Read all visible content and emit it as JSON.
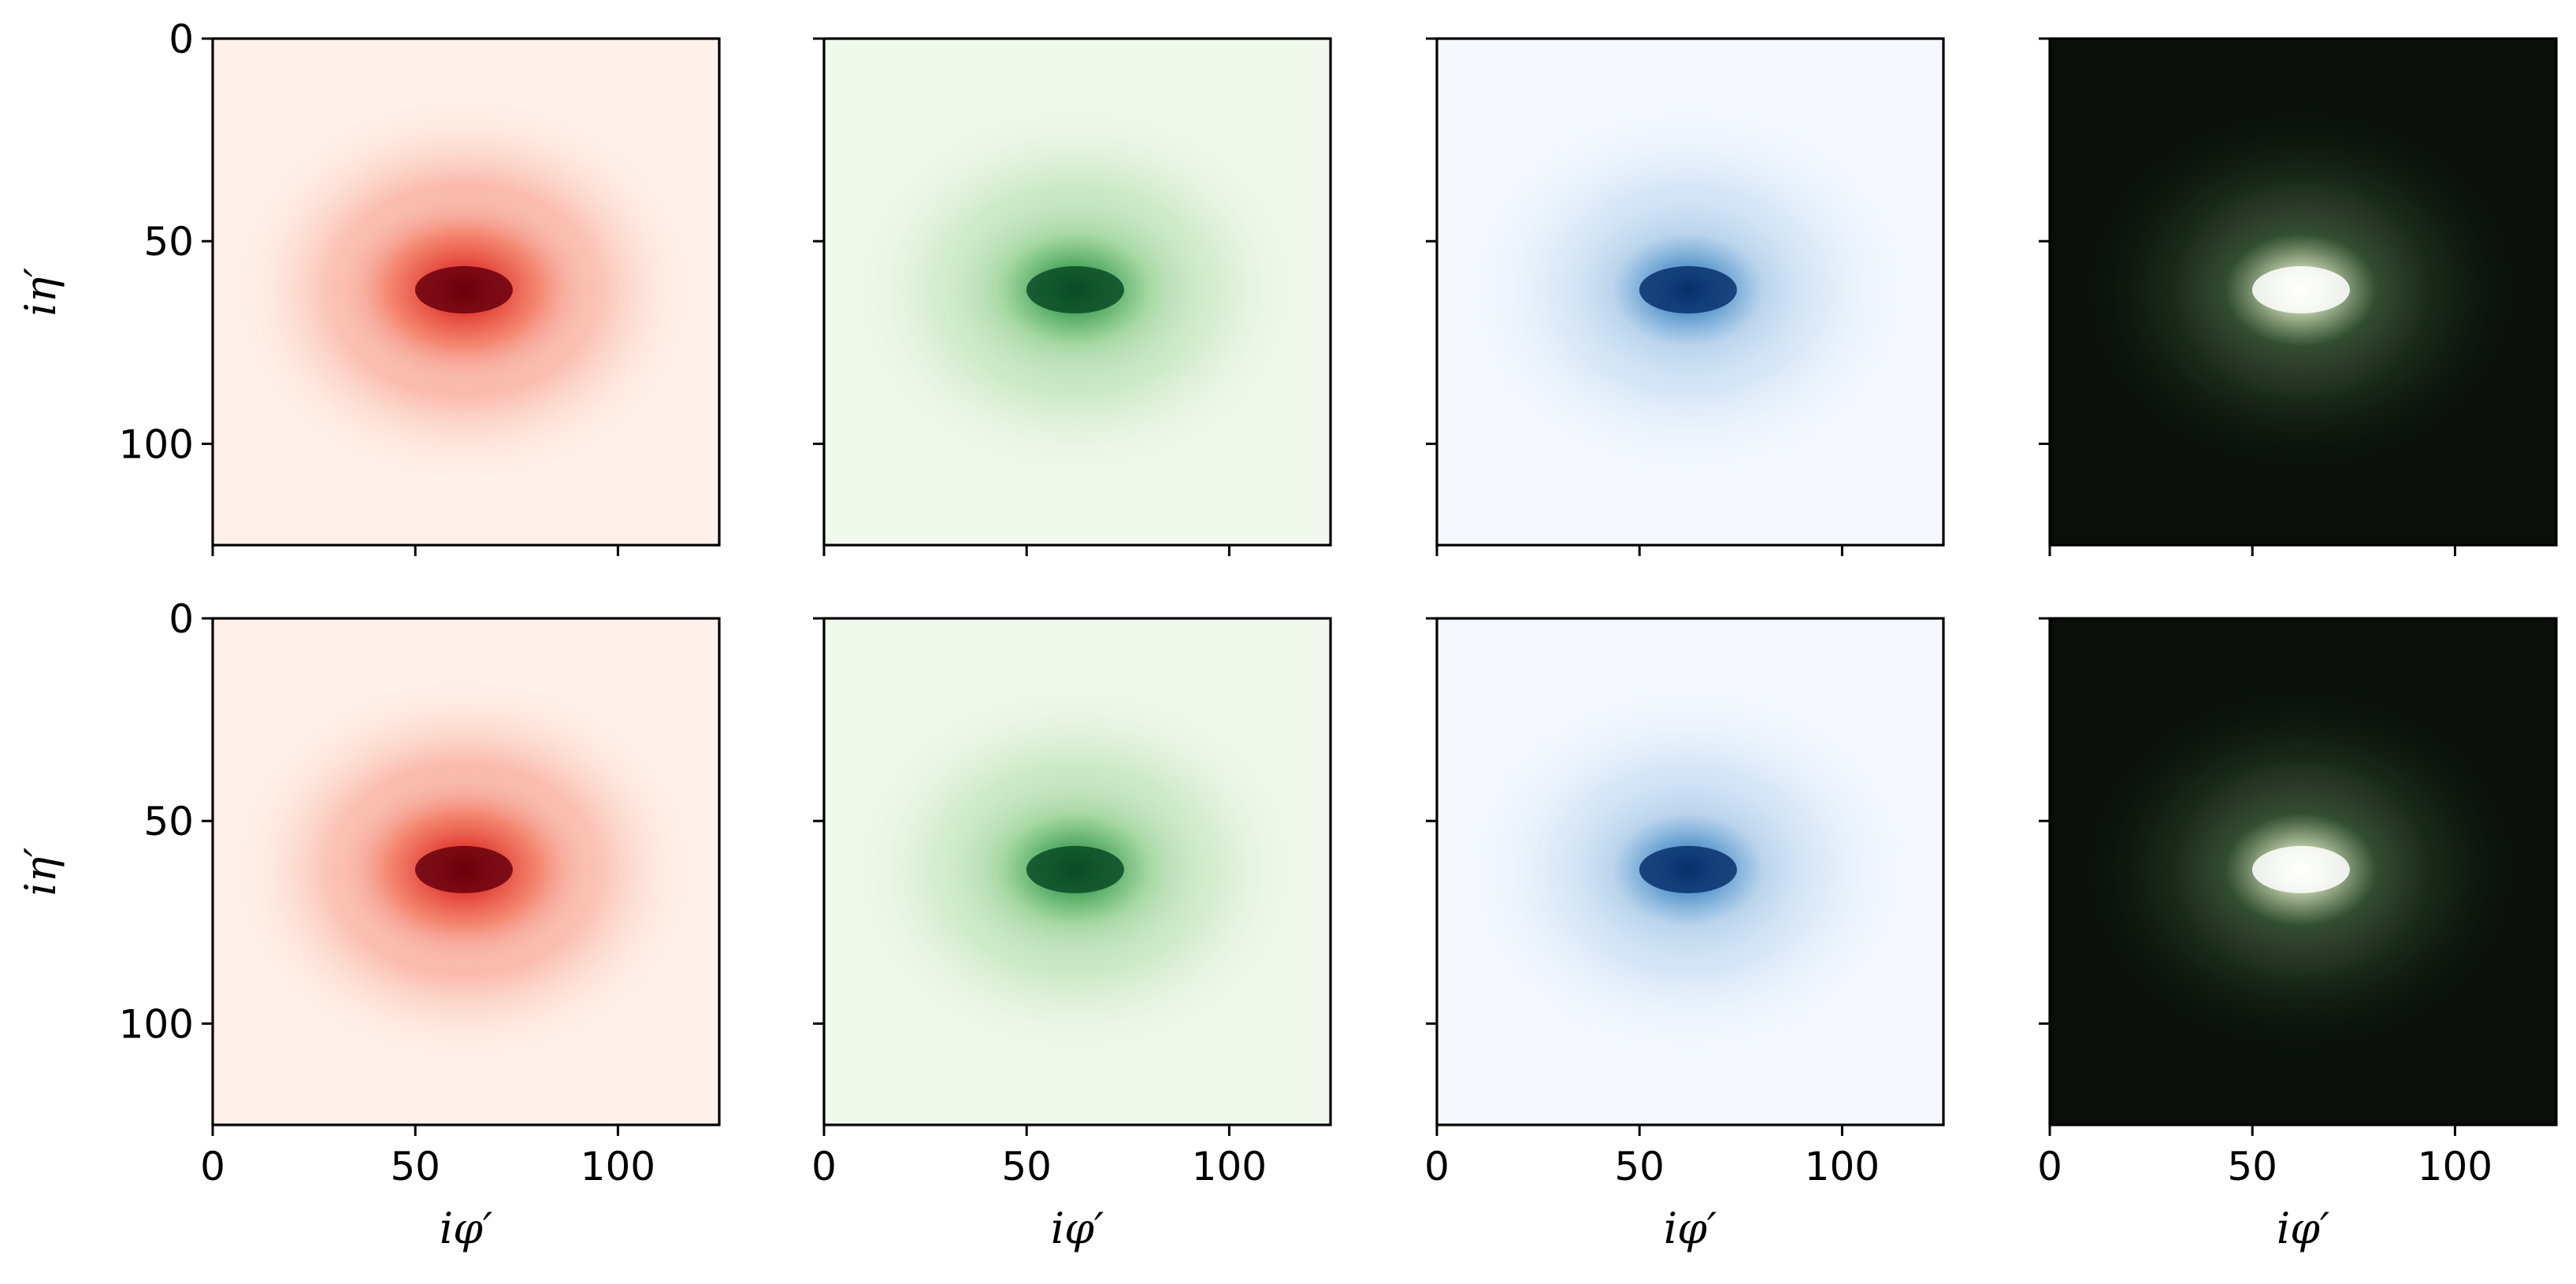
{
  "chart_data": [
    {
      "type": "heatmap",
      "colormap": "Reds",
      "row": 1,
      "col": 1,
      "xlim": [
        0,
        125
      ],
      "ylim": [
        125,
        0
      ],
      "xticks": [
        0,
        50,
        100
      ],
      "yticks": [
        0,
        50,
        100
      ],
      "show_xticklabels": false,
      "show_yticklabels": true,
      "xlabel": "",
      "ylabel": "iη′",
      "peak": {
        "x": 62,
        "y": 62
      }
    },
    {
      "type": "heatmap",
      "colormap": "Greens",
      "row": 1,
      "col": 2,
      "xlim": [
        0,
        125
      ],
      "ylim": [
        125,
        0
      ],
      "xticks": [
        0,
        50,
        100
      ],
      "yticks": [
        0,
        50,
        100
      ],
      "show_xticklabels": false,
      "show_yticklabels": false,
      "xlabel": "",
      "ylabel": "",
      "peak": {
        "x": 62,
        "y": 62
      }
    },
    {
      "type": "heatmap",
      "colormap": "Blues",
      "row": 1,
      "col": 3,
      "xlim": [
        0,
        125
      ],
      "ylim": [
        125,
        0
      ],
      "xticks": [
        0,
        50,
        100
      ],
      "yticks": [
        0,
        50,
        100
      ],
      "show_xticklabels": false,
      "show_yticklabels": false,
      "xlabel": "",
      "ylabel": "",
      "peak": {
        "x": 62,
        "y": 62
      }
    },
    {
      "type": "heatmap",
      "colormap": "RGB composite",
      "row": 1,
      "col": 4,
      "xlim": [
        0,
        125
      ],
      "ylim": [
        125,
        0
      ],
      "xticks": [
        0,
        50,
        100
      ],
      "yticks": [
        0,
        50,
        100
      ],
      "show_xticklabels": false,
      "show_yticklabels": false,
      "xlabel": "",
      "ylabel": "",
      "peak": {
        "x": 62,
        "y": 62
      }
    },
    {
      "type": "heatmap",
      "colormap": "Reds",
      "row": 2,
      "col": 1,
      "xlim": [
        0,
        125
      ],
      "ylim": [
        125,
        0
      ],
      "xticks": [
        0,
        50,
        100
      ],
      "yticks": [
        0,
        50,
        100
      ],
      "show_xticklabels": true,
      "show_yticklabels": true,
      "xlabel": "iφ′",
      "ylabel": "iη′",
      "peak": {
        "x": 62,
        "y": 62
      }
    },
    {
      "type": "heatmap",
      "colormap": "Greens",
      "row": 2,
      "col": 2,
      "xlim": [
        0,
        125
      ],
      "ylim": [
        125,
        0
      ],
      "xticks": [
        0,
        50,
        100
      ],
      "yticks": [
        0,
        50,
        100
      ],
      "show_xticklabels": true,
      "show_yticklabels": false,
      "xlabel": "iφ′",
      "ylabel": "",
      "peak": {
        "x": 62,
        "y": 62
      }
    },
    {
      "type": "heatmap",
      "colormap": "Blues",
      "row": 2,
      "col": 3,
      "xlim": [
        0,
        125
      ],
      "ylim": [
        125,
        0
      ],
      "xticks": [
        0,
        50,
        100
      ],
      "yticks": [
        0,
        50,
        100
      ],
      "show_xticklabels": true,
      "show_yticklabels": false,
      "xlabel": "iφ′",
      "ylabel": "",
      "peak": {
        "x": 62,
        "y": 62
      }
    },
    {
      "type": "heatmap",
      "colormap": "RGB composite",
      "row": 2,
      "col": 4,
      "xlim": [
        0,
        125
      ],
      "ylim": [
        125,
        0
      ],
      "xticks": [
        0,
        50,
        100
      ],
      "yticks": [
        0,
        50,
        100
      ],
      "show_xticklabels": true,
      "show_yticklabels": false,
      "xlabel": "iφ′",
      "ylabel": "",
      "peak": {
        "x": 62,
        "y": 62
      }
    }
  ],
  "colors": {
    "Reds": {
      "background": "#fff0e9",
      "mid": "#f4846c",
      "core": "#e0362b",
      "peak": "#67000d"
    },
    "Greens": {
      "background": "#f1f8ec",
      "mid": "#a8dba3",
      "core": "#40a055",
      "peak": "#0a4a26"
    },
    "Blues": {
      "background": "#f5f9ff",
      "mid": "#bcd6ee",
      "core": "#4a8ec6",
      "peak": "#08306b"
    },
    "RGB composite": {
      "background": "#0a0f0a",
      "mid": "#2c4a2c",
      "core": "#c8d8b0",
      "peak": "#ffffff"
    }
  }
}
